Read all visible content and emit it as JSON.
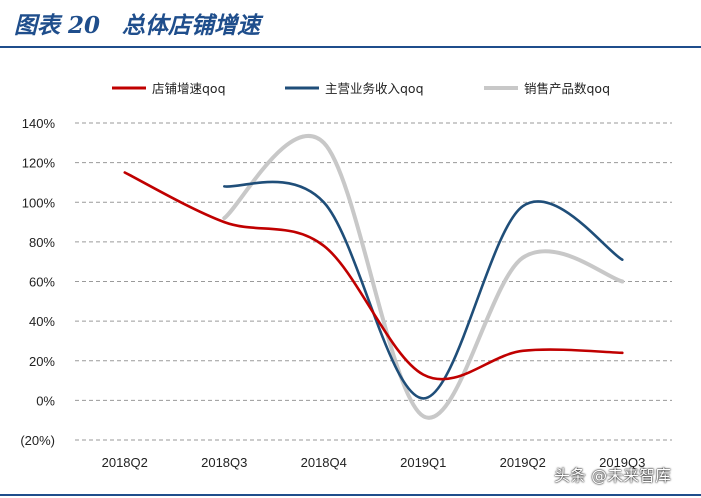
{
  "header": {
    "figure_label": "图表 20",
    "title": "总体店铺增速"
  },
  "watermark": "头条 @未来智库",
  "colors": {
    "brand": "#1f4e8c",
    "negative_tick": "#cc0000"
  },
  "chart_data": {
    "type": "line",
    "categories": [
      "2018Q2",
      "2018Q3",
      "2018Q4",
      "2019Q1",
      "2019Q2",
      "2019Q3"
    ],
    "y_ticks": [
      "140%",
      "120%",
      "100%",
      "80%",
      "60%",
      "40%",
      "20%",
      "0%",
      "(20%)"
    ],
    "y_tick_values": [
      140,
      120,
      100,
      80,
      60,
      40,
      20,
      0,
      -20
    ],
    "ylim": [
      -20,
      140
    ],
    "grid": "horizontal dashed",
    "legend_position": "top",
    "series": [
      {
        "name": "店铺增速qoq",
        "color": "#c00000",
        "values": [
          115,
          90,
          78,
          13,
          25,
          24
        ]
      },
      {
        "name": "主营业务收入qoq",
        "color": "#1f4e79",
        "values": [
          null,
          108,
          100,
          1,
          98,
          71
        ]
      },
      {
        "name": "销售产品数qoq",
        "color": "#c8c8c8",
        "values": [
          null,
          92,
          130,
          -8,
          72,
          60
        ]
      }
    ]
  }
}
